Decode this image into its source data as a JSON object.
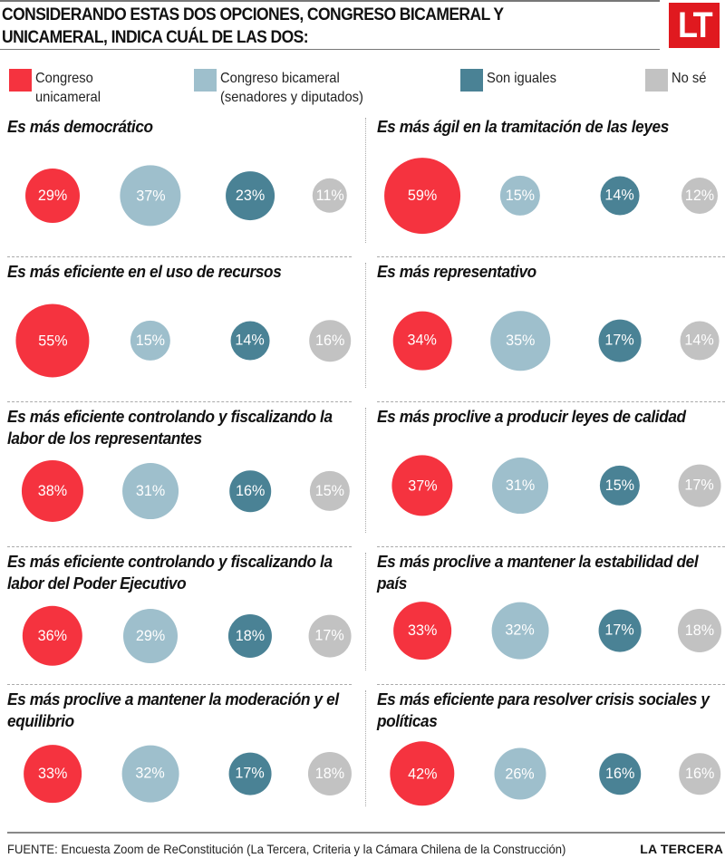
{
  "header": {
    "title": "CONSIDERANDO ESTAS DOS OPCIONES, CONGRESO BICAMERAL Y UNICAMERAL, INDICA CUÁL DE LAS DOS:",
    "logo_text": "LT"
  },
  "legend": [
    {
      "label": "Congreso\nunicameral",
      "color": "#f5333f"
    },
    {
      "label": "Congreso bicameral\n(senadores y diputados)",
      "color": "#9ebfcc"
    },
    {
      "label": "Son iguales",
      "color": "#4a8295"
    },
    {
      "label": "No sé",
      "color": "#c2c2c2"
    }
  ],
  "chart_data": {
    "type": "bubble",
    "title": "CONSIDERANDO ESTAS DOS OPCIONES, CONGRESO BICAMERAL Y UNICAMERAL, INDICA CUÁL DE LAS DOS:",
    "series_names": [
      "Congreso unicameral",
      "Congreso bicameral (senadores y diputados)",
      "Son iguales",
      "No sé"
    ],
    "colors": [
      "#f5333f",
      "#9ebfcc",
      "#4a8295",
      "#c2c2c2"
    ],
    "unit": "%",
    "panels": [
      {
        "question": "Es más democrático",
        "values": [
          29,
          37,
          23,
          11
        ]
      },
      {
        "question": "Es más ágil en la tramitación de las leyes",
        "values": [
          59,
          15,
          14,
          12
        ]
      },
      {
        "question": "Es más eficiente en el uso de recursos",
        "values": [
          55,
          15,
          14,
          16
        ]
      },
      {
        "question": "Es más representativo",
        "values": [
          34,
          35,
          17,
          14
        ]
      },
      {
        "question": "Es más eficiente controlando y fiscalizando la labor de los representantes",
        "values": [
          38,
          31,
          16,
          15
        ]
      },
      {
        "question": "Es más proclive a producir leyes de calidad",
        "values": [
          37,
          31,
          15,
          17
        ]
      },
      {
        "question": "Es más eficiente controlando y fiscalizando la labor del Poder Ejecutivo",
        "values": [
          36,
          29,
          18,
          17
        ]
      },
      {
        "question": "Es más proclive a mantener la estabilidad del país",
        "values": [
          33,
          32,
          17,
          18
        ]
      },
      {
        "question": "Es más proclive a mantener la moderación y el equilibrio",
        "values": [
          33,
          32,
          17,
          18
        ]
      },
      {
        "question": "Es más eficiente para resolver crisis sociales y políticas",
        "values": [
          42,
          26,
          16,
          16
        ]
      }
    ]
  },
  "footer": {
    "source": "FUENTE: Encuesta Zoom de ReConstitución (La Tercera, Criteria y la Cámara Chilena de la Construcción)",
    "brand": "LA TERCERA"
  }
}
